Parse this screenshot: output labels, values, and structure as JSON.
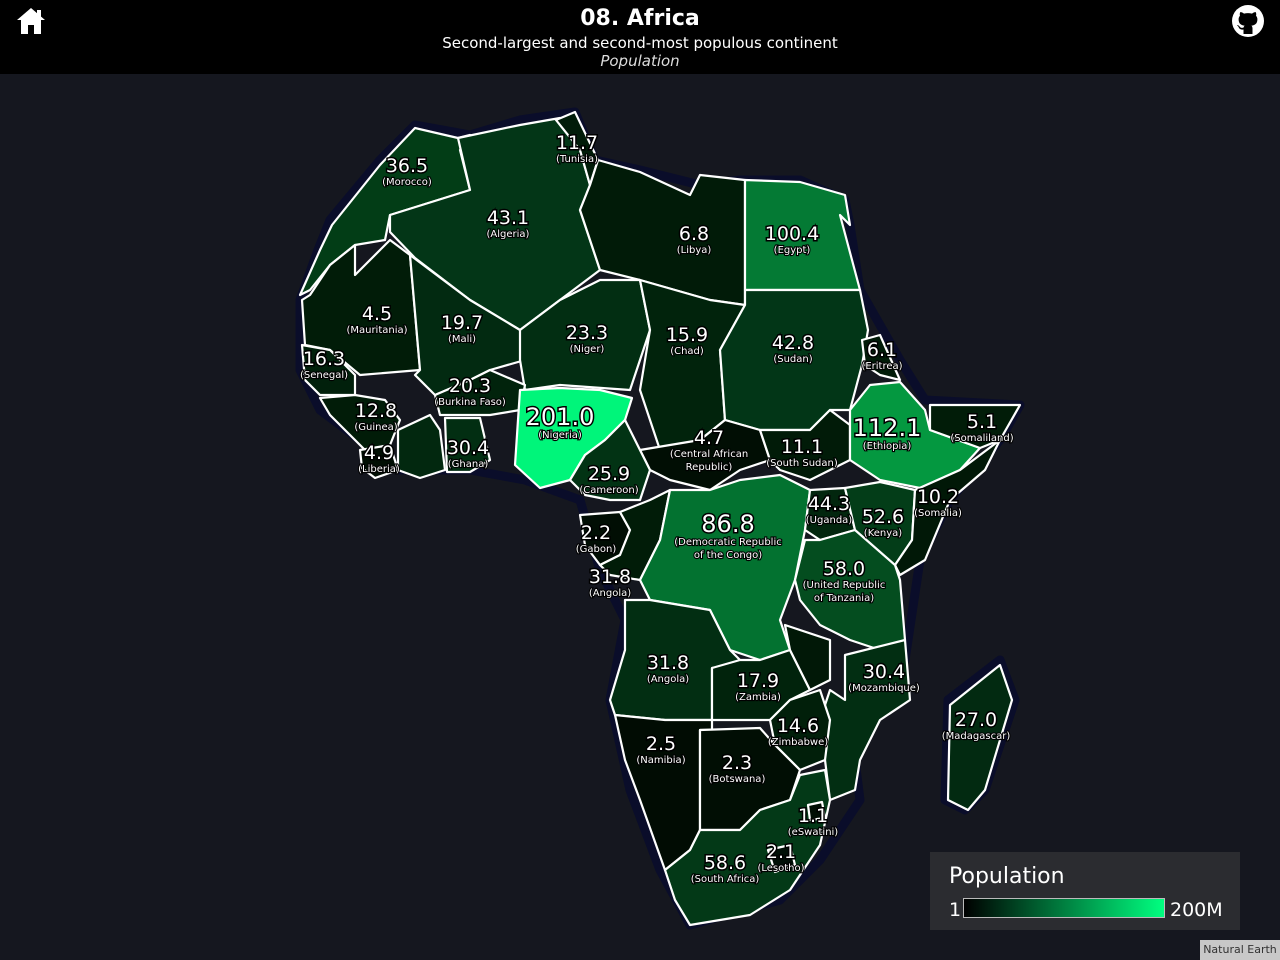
{
  "header": {
    "title": "08. Africa",
    "subtitle": "Second-largest and second-most populous continent",
    "metric": "Population"
  },
  "icons": {
    "home": "home-icon",
    "github": "github-icon"
  },
  "legend": {
    "title": "Population",
    "min_label": "1",
    "max_label": "200M",
    "color_low": "#000000",
    "color_high": "#00ff80"
  },
  "attribution": "Natural Earth",
  "countries": [
    {
      "id": "morocco",
      "name": "(Morocco)",
      "value": "36.5"
    },
    {
      "id": "algeria",
      "name": "(Algeria)",
      "value": "43.1"
    },
    {
      "id": "tunisia",
      "name": "(Tunisia)",
      "value": "11.7"
    },
    {
      "id": "libya",
      "name": "(Libya)",
      "value": "6.8"
    },
    {
      "id": "egypt",
      "name": "(Egypt)",
      "value": "100.4"
    },
    {
      "id": "mauritania",
      "name": "(Mauritania)",
      "value": "4.5"
    },
    {
      "id": "mali",
      "name": "(Mali)",
      "value": "19.7"
    },
    {
      "id": "niger",
      "name": "(Niger)",
      "value": "23.3"
    },
    {
      "id": "chad",
      "name": "(Chad)",
      "value": "15.9"
    },
    {
      "id": "sudan",
      "name": "(Sudan)",
      "value": "42.8"
    },
    {
      "id": "eritrea",
      "name": "(Eritrea)",
      "value": "6.1"
    },
    {
      "id": "senegal",
      "name": "(Senegal)",
      "value": "16.3"
    },
    {
      "id": "burkina",
      "name": "(Burkina Faso)",
      "value": "20.3"
    },
    {
      "id": "guinea",
      "name": "(Guinea)",
      "value": "12.8"
    },
    {
      "id": "liberia",
      "name": "(Liberia)",
      "value": "4.9"
    },
    {
      "id": "ghana",
      "name": "(Ghana)",
      "value": "30.4"
    },
    {
      "id": "nigeria",
      "name": "(Nigeria)",
      "value": "201.0"
    },
    {
      "id": "car",
      "name": "(Central African Republic)",
      "value": "4.7"
    },
    {
      "id": "southsudan",
      "name": "(South Sudan)",
      "value": "11.1"
    },
    {
      "id": "ethiopia",
      "name": "(Ethiopia)",
      "value": "112.1"
    },
    {
      "id": "somaliland",
      "name": "(Somaliland)",
      "value": "5.1"
    },
    {
      "id": "cameroon",
      "name": "(Cameroon)",
      "value": "25.9"
    },
    {
      "id": "gabon",
      "name": "(Gabon)",
      "value": "2.2"
    },
    {
      "id": "angola_n",
      "name": "(Angola)",
      "value": "31.8"
    },
    {
      "id": "drc",
      "name": "(Democratic Republic of the Congo)",
      "value": "86.8"
    },
    {
      "id": "uganda",
      "name": "(Uganda)",
      "value": "44.3"
    },
    {
      "id": "kenya",
      "name": "(Kenya)",
      "value": "52.6"
    },
    {
      "id": "somalia",
      "name": "(Somalia)",
      "value": "10.2"
    },
    {
      "id": "tanzania",
      "name": "(United Republic of Tanzania)",
      "value": "58.0"
    },
    {
      "id": "angola",
      "name": "(Angola)",
      "value": "31.8"
    },
    {
      "id": "zambia",
      "name": "(Zambia)",
      "value": "17.9"
    },
    {
      "id": "mozambique",
      "name": "(Mozambique)",
      "value": "30.4"
    },
    {
      "id": "madagascar",
      "name": "(Madagascar)",
      "value": "27.0"
    },
    {
      "id": "zimbabwe",
      "name": "(Zimbabwe)",
      "value": "14.6"
    },
    {
      "id": "namibia",
      "name": "(Namibia)",
      "value": "2.5"
    },
    {
      "id": "botswana",
      "name": "(Botswana)",
      "value": "2.3"
    },
    {
      "id": "eswatini",
      "name": "(eSwatini)",
      "value": "1.1"
    },
    {
      "id": "lesotho",
      "name": "(Lesotho)",
      "value": "2.1"
    },
    {
      "id": "southafrica",
      "name": "(South Africa)",
      "value": "58.6"
    }
  ]
}
